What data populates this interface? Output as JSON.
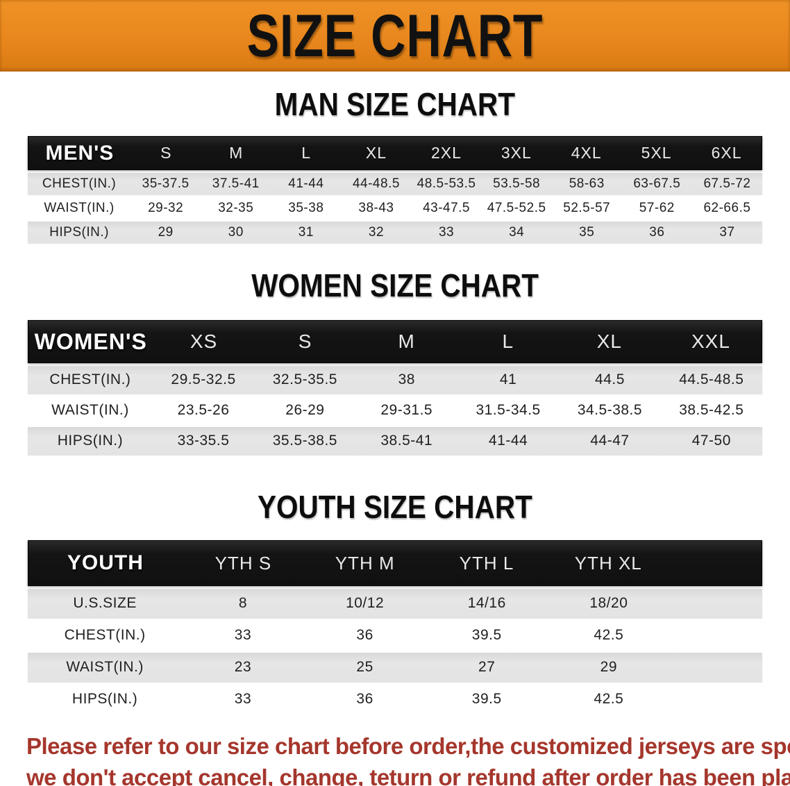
{
  "banner": {
    "title": "SIZE CHART",
    "bg_color": "#e8871d"
  },
  "sections": [
    {
      "heading": "MAN SIZE CHART",
      "header_label": "MEN'S",
      "columns": [
        "S",
        "M",
        "L",
        "XL",
        "2XL",
        "3XL",
        "4XL",
        "5XL",
        "6XL"
      ],
      "rows": [
        {
          "label": "CHEST(IN.)",
          "values": [
            "35-37.5",
            "37.5-41",
            "41-44",
            "44-48.5",
            "48.5-53.5",
            "53.5-58",
            "58-63",
            "63-67.5",
            "67.5-72"
          ]
        },
        {
          "label": "WAIST(IN.)",
          "values": [
            "29-32",
            "32-35",
            "35-38",
            "38-43",
            "43-47.5",
            "47.5-52.5",
            "52.5-57",
            "57-62",
            "62-66.5"
          ]
        },
        {
          "label": "HIPS(IN.)",
          "values": [
            "29",
            "30",
            "31",
            "32",
            "33",
            "34",
            "35",
            "36",
            "37"
          ]
        }
      ]
    },
    {
      "heading": "WOMEN SIZE CHART",
      "header_label": "WOMEN'S",
      "columns": [
        "XS",
        "S",
        "M",
        "L",
        "XL",
        "XXL"
      ],
      "rows": [
        {
          "label": "CHEST(IN.)",
          "values": [
            "29.5-32.5",
            "32.5-35.5",
            "38",
            "41",
            "44.5",
            "44.5-48.5"
          ]
        },
        {
          "label": "WAIST(IN.)",
          "values": [
            "23.5-26",
            "26-29",
            "29-31.5",
            "31.5-34.5",
            "34.5-38.5",
            "38.5-42.5"
          ]
        },
        {
          "label": "HIPS(IN.)",
          "values": [
            "33-35.5",
            "35.5-38.5",
            "38.5-41",
            "41-44",
            "44-47",
            "47-50"
          ]
        }
      ]
    },
    {
      "heading": "YOUTH SIZE CHART",
      "header_label": "YOUTH",
      "columns": [
        "YTH S",
        "YTH M",
        "YTH L",
        "YTH XL"
      ],
      "rows": [
        {
          "label": "U.S.SIZE",
          "values": [
            "8",
            "10/12",
            "14/16",
            "18/20"
          ]
        },
        {
          "label": "CHEST(IN.)",
          "values": [
            "33",
            "36",
            "39.5",
            "42.5"
          ]
        },
        {
          "label": "WAIST(IN.)",
          "values": [
            "23",
            "25",
            "27",
            "29"
          ]
        },
        {
          "label": "HIPS(IN.)",
          "values": [
            "33",
            "36",
            "39.5",
            "42.5"
          ]
        }
      ]
    }
  ],
  "disclaimer": {
    "line1": "Please refer to our size chart before order,the customized jerseys are special products,",
    "line2": "we don't accept cancel, change, teturn or refund after order has been placed!",
    "color": "#a5362c"
  }
}
